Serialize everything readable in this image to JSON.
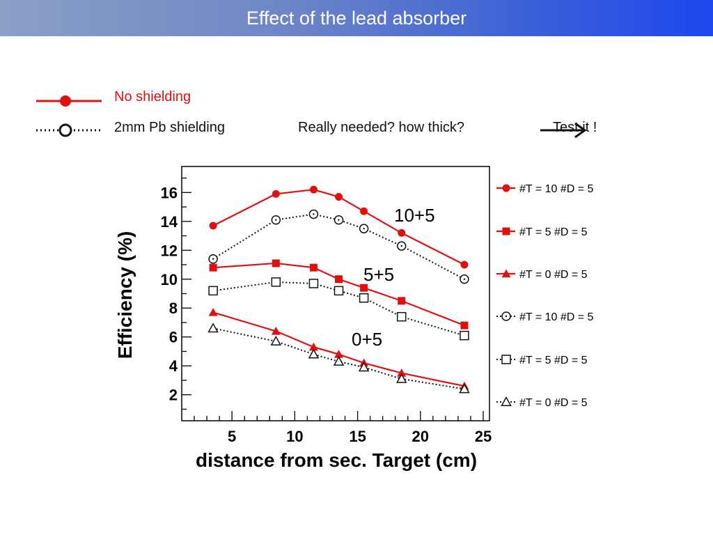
{
  "slide": {
    "title": "Effect of the lead absorber",
    "legend_no_shielding": "No shielding",
    "legend_pb_shielding": "2mm Pb shielding",
    "question": "Really needed? how thick?",
    "test_it": "Test it !"
  },
  "colors": {
    "red": "#e01010",
    "black": "#111111",
    "title_text": "#ffffff"
  },
  "chart_data": {
    "type": "line",
    "xlabel": "distance from sec. Target (cm)",
    "ylabel": "Efficiency (%)",
    "xlim": [
      1,
      25.5
    ],
    "ylim": [
      0.2,
      17.8
    ],
    "xticks": [
      5,
      10,
      15,
      20,
      25
    ],
    "yticks": [
      2,
      4,
      6,
      8,
      10,
      12,
      14,
      16
    ],
    "x": [
      3.5,
      8.5,
      11.5,
      13.5,
      15.5,
      18.5,
      23.5
    ],
    "series": [
      {
        "name": "#T = 10  #D = 5",
        "color": "#e01010",
        "marker": "filled-circle",
        "line": "solid",
        "values": [
          13.7,
          15.9,
          16.2,
          15.7,
          14.7,
          13.2,
          11.0
        ]
      },
      {
        "name": "#T = 5  #D = 5",
        "color": "#e01010",
        "marker": "filled-square",
        "line": "solid",
        "values": [
          10.8,
          11.1,
          10.8,
          10.0,
          9.4,
          8.5,
          6.8
        ]
      },
      {
        "name": "#T = 0  #D = 5",
        "color": "#e01010",
        "marker": "filled-triangle",
        "line": "solid",
        "values": [
          7.7,
          6.4,
          5.3,
          4.8,
          4.2,
          3.5,
          2.6
        ]
      },
      {
        "name": "#T = 10  #D = 5",
        "color": "#111111",
        "marker": "open-circle",
        "line": "dotted",
        "values": [
          11.4,
          14.1,
          14.5,
          14.1,
          13.5,
          12.3,
          10.0
        ]
      },
      {
        "name": "#T = 5  #D = 5",
        "color": "#111111",
        "marker": "open-square",
        "line": "dotted",
        "values": [
          9.2,
          9.8,
          9.7,
          9.2,
          8.7,
          7.4,
          6.1
        ]
      },
      {
        "name": "#T = 0  #D = 5",
        "color": "#111111",
        "marker": "open-triangle",
        "line": "dotted",
        "values": [
          6.6,
          5.7,
          4.8,
          4.3,
          3.9,
          3.1,
          2.4
        ]
      }
    ],
    "annotations": [
      "10+5",
      "5+5",
      "0+5"
    ],
    "legend_position": "right"
  }
}
